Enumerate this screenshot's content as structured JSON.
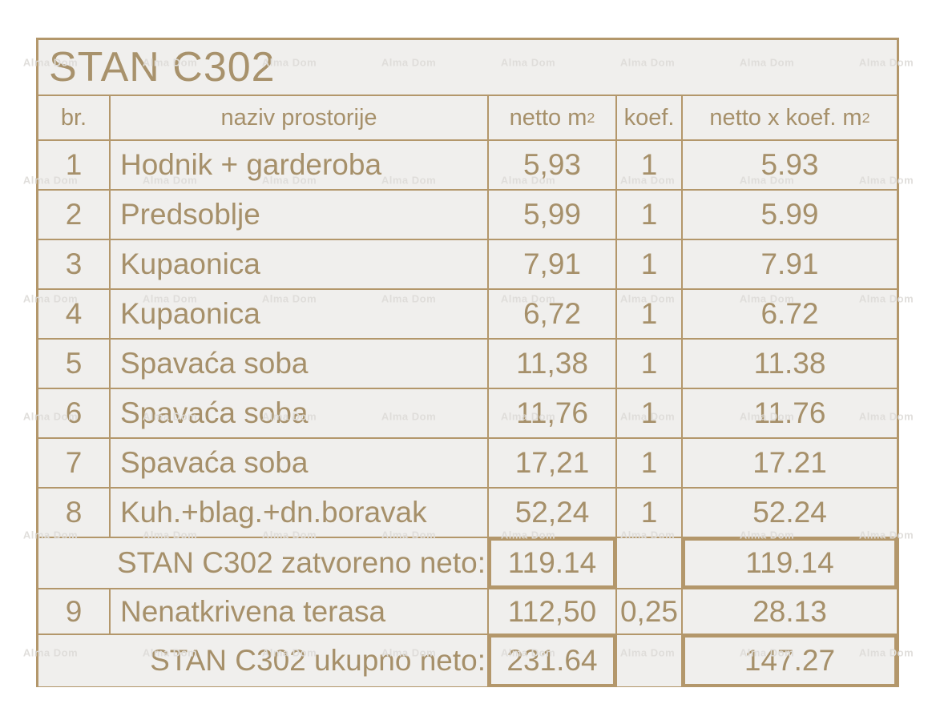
{
  "title": "STAN C302",
  "watermark": {
    "text": "Alma Dom"
  },
  "colors": {
    "border": "#b3976b",
    "text": "#a6906a",
    "cell_bg": "#f0efed",
    "page_bg": "#ffffff"
  },
  "table": {
    "headers": {
      "br": "br.",
      "naziv": "naziv prostorije",
      "netto_base": "netto m",
      "netto_sup": "2",
      "koef": "koef.",
      "netto_koef_base": "netto x koef. m",
      "netto_koef_sup": "2"
    },
    "rows": [
      {
        "br": "1",
        "naziv": "Hodnik + garderoba",
        "netto": "5,93",
        "koef": "1",
        "netto_koef": "5.93"
      },
      {
        "br": "2",
        "naziv": "Predsoblje",
        "netto": "5,99",
        "koef": "1",
        "netto_koef": "5.99"
      },
      {
        "br": "3",
        "naziv": "Kupaonica",
        "netto": "7,91",
        "koef": "1",
        "netto_koef": "7.91"
      },
      {
        "br": "4",
        "naziv": "Kupaonica",
        "netto": "6,72",
        "koef": "1",
        "netto_koef": "6.72"
      },
      {
        "br": "5",
        "naziv": "Spavaća soba",
        "netto": "11,38",
        "koef": "1",
        "netto_koef": "11.38"
      },
      {
        "br": "6",
        "naziv": "Spavaća soba",
        "netto": "11,76",
        "koef": "1",
        "netto_koef": "11.76"
      },
      {
        "br": "7",
        "naziv": "Spavaća soba",
        "netto": "17,21",
        "koef": "1",
        "netto_koef": "17.21"
      },
      {
        "br": "8",
        "naziv": "Kuh.+blag.+dn.boravak",
        "netto": "52,24",
        "koef": "1",
        "netto_koef": "52.24"
      }
    ],
    "subtotal": {
      "label": "STAN C302 zatvoreno neto:",
      "netto": "119.14",
      "koef": "",
      "netto_koef": "119.14"
    },
    "row9": {
      "br": "9",
      "naziv": "Nenatkrivena terasa",
      "netto": "112,50",
      "koef": "0,25",
      "netto_koef": "28.13"
    },
    "total": {
      "label": "STAN C302 ukupno neto:",
      "netto": "231.64",
      "koef": "",
      "netto_koef": "147.27"
    }
  }
}
